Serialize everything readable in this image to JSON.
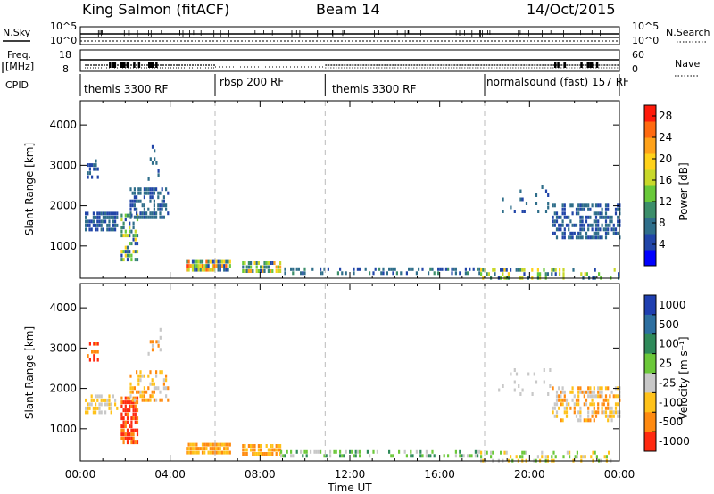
{
  "header": {
    "station": "King Salmon (fitACF)",
    "beam": "Beam 14",
    "date": "14/Oct/2015"
  },
  "aux": {
    "nsky_label": "N.Sky",
    "nsky_ticks": [
      "10^5",
      "10^0"
    ],
    "nsearch_label": "N.Search",
    "nsearch_ticks": [
      "10^5",
      "10^0"
    ],
    "freq_label_1": "Freq.",
    "freq_label_2": "[MHz]",
    "freq_ticks": [
      "18",
      "8"
    ],
    "nave_label": "Nave",
    "nave_ticks": [
      "60",
      "0"
    ],
    "cpid_label": "CPID",
    "cpid_segments": [
      {
        "label": "themis 3300 RF",
        "start_hour": 0
      },
      {
        "label": "rbsp 200 RF",
        "start_hour": 6
      },
      {
        "label": "themis 3300 RF",
        "start_hour": 10.9
      },
      {
        "label": "normalsound (fast) 157 RF",
        "start_hour": 18
      }
    ]
  },
  "panels": {
    "ylabel": "Slant Range [km]",
    "xlabel": "Time UT",
    "power_colorbar_label": "Power [dB]",
    "velocity_colorbar_label": "Velocity  [m s⁻¹]"
  },
  "chart_data": [
    {
      "type": "heatmap",
      "name": "power",
      "xlabel": "Time UT",
      "ylabel": "Slant Range [km]",
      "x_unit": "hours UT",
      "xlim": [
        0,
        24
      ],
      "ylim": [
        200,
        4600
      ],
      "x_ticks": [
        0,
        4,
        8,
        12,
        16,
        20,
        24
      ],
      "x_tick_labels": [
        "00:00",
        "04:00",
        "08:00",
        "12:00",
        "16:00",
        "20:00",
        "00:00"
      ],
      "y_ticks": [
        1000,
        2000,
        3000,
        4000
      ],
      "y_tick_labels": [
        "1000",
        "2000",
        "3000",
        "4000"
      ],
      "colorbar": {
        "label": "Power [dB]",
        "range": [
          0,
          30
        ],
        "ticks": [
          4,
          8,
          12,
          16,
          20,
          24,
          28
        ],
        "colors": [
          "#0000ff",
          "#2145a8",
          "#2f6e8a",
          "#3c8e6a",
          "#69c93a",
          "#c8d82a",
          "#ffd21a",
          "#ffa21a",
          "#ff6a10",
          "#ff1a0a"
        ]
      },
      "vertical_markers_hours": [
        6,
        10.9,
        18
      ],
      "clusters": [
        {
          "t0": 0.2,
          "t1": 1.6,
          "r0": 1400,
          "r1": 1850,
          "v0": 4,
          "v1": 8,
          "density": 0.75
        },
        {
          "t0": 0.3,
          "t1": 0.8,
          "r0": 2700,
          "r1": 3150,
          "v0": 4,
          "v1": 8,
          "density": 0.4
        },
        {
          "t0": 1.8,
          "t1": 2.5,
          "r0": 700,
          "r1": 1800,
          "v0": 4,
          "v1": 20,
          "density": 0.6
        },
        {
          "t0": 2.2,
          "t1": 3.9,
          "r0": 1700,
          "r1": 2450,
          "v0": 4,
          "v1": 9,
          "density": 0.5
        },
        {
          "t0": 3.0,
          "t1": 3.6,
          "r0": 2700,
          "r1": 3500,
          "v0": 4,
          "v1": 8,
          "density": 0.2
        },
        {
          "t0": 4.7,
          "t1": 6.7,
          "r0": 430,
          "r1": 650,
          "v0": 4,
          "v1": 28,
          "density": 0.85
        },
        {
          "t0": 7.2,
          "t1": 8.9,
          "r0": 420,
          "r1": 620,
          "v0": 4,
          "v1": 24,
          "density": 0.75
        },
        {
          "t0": 8.9,
          "t1": 17.8,
          "r0": 300,
          "r1": 470,
          "v0": 4,
          "v1": 10,
          "density": 0.38
        },
        {
          "t0": 17.8,
          "t1": 24,
          "r0": 250,
          "r1": 450,
          "v0": 4,
          "v1": 20,
          "density": 0.32
        },
        {
          "t0": 18.6,
          "t1": 21.0,
          "r0": 1900,
          "r1": 2500,
          "v0": 4,
          "v1": 8,
          "density": 0.1
        },
        {
          "t0": 21.0,
          "t1": 24,
          "r0": 1250,
          "r1": 2050,
          "v0": 4,
          "v1": 8,
          "density": 0.55
        }
      ]
    },
    {
      "type": "heatmap",
      "name": "velocity",
      "xlabel": "Time UT",
      "ylabel": "Slant Range [km]",
      "x_unit": "hours UT",
      "xlim": [
        0,
        24
      ],
      "ylim": [
        200,
        4600
      ],
      "x_ticks": [
        0,
        4,
        8,
        12,
        16,
        20,
        24
      ],
      "x_tick_labels": [
        "00:00",
        "04:00",
        "08:00",
        "12:00",
        "16:00",
        "20:00",
        "00:00"
      ],
      "y_ticks": [
        1000,
        2000,
        3000,
        4000
      ],
      "y_tick_labels": [
        "1000",
        "2000",
        "3000",
        "4000"
      ],
      "colorbar": {
        "label": "Velocity  [m s⁻¹]",
        "tick_labels": [
          "1000",
          "500",
          "100",
          "25",
          "-25",
          "-100",
          "-500",
          "-1000"
        ],
        "colors": [
          "#1f3fb0",
          "#2d6fa0",
          "#2f8a5a",
          "#6cc83a",
          "#c8c8c8",
          "#ffc21a",
          "#ff8a10",
          "#ff2a10"
        ]
      },
      "vertical_markers_hours": [
        6,
        10.9,
        18
      ],
      "clusters": [
        {
          "t0": 0.2,
          "t1": 1.6,
          "r0": 1400,
          "r1": 1850,
          "c": [
            4,
            5
          ],
          "density": 0.55
        },
        {
          "t0": 0.3,
          "t1": 0.8,
          "r0": 2700,
          "r1": 3150,
          "c": [
            6,
            7
          ],
          "density": 0.4
        },
        {
          "t0": 1.8,
          "t1": 2.5,
          "r0": 700,
          "r1": 1800,
          "c": [
            6,
            7
          ],
          "density": 0.75
        },
        {
          "t0": 2.2,
          "t1": 3.9,
          "r0": 1700,
          "r1": 2450,
          "c": [
            4,
            5,
            6
          ],
          "density": 0.45
        },
        {
          "t0": 3.0,
          "t1": 3.6,
          "r0": 2700,
          "r1": 3500,
          "c": [
            4,
            6
          ],
          "density": 0.2
        },
        {
          "t0": 4.7,
          "t1": 6.7,
          "r0": 430,
          "r1": 650,
          "c": [
            5,
            6
          ],
          "density": 0.85
        },
        {
          "t0": 7.2,
          "t1": 8.9,
          "r0": 420,
          "r1": 620,
          "c": [
            6,
            5
          ],
          "density": 0.75
        },
        {
          "t0": 8.9,
          "t1": 17.8,
          "r0": 300,
          "r1": 470,
          "c": [
            3,
            2,
            4
          ],
          "density": 0.35
        },
        {
          "t0": 17.8,
          "t1": 24,
          "r0": 250,
          "r1": 450,
          "c": [
            3,
            4,
            5
          ],
          "density": 0.3
        },
        {
          "t0": 18.6,
          "t1": 21.0,
          "r0": 1900,
          "r1": 2500,
          "c": [
            4
          ],
          "density": 0.1
        },
        {
          "t0": 21.0,
          "t1": 24,
          "r0": 1250,
          "r1": 2050,
          "c": [
            4,
            5,
            6
          ],
          "density": 0.5
        }
      ]
    }
  ]
}
